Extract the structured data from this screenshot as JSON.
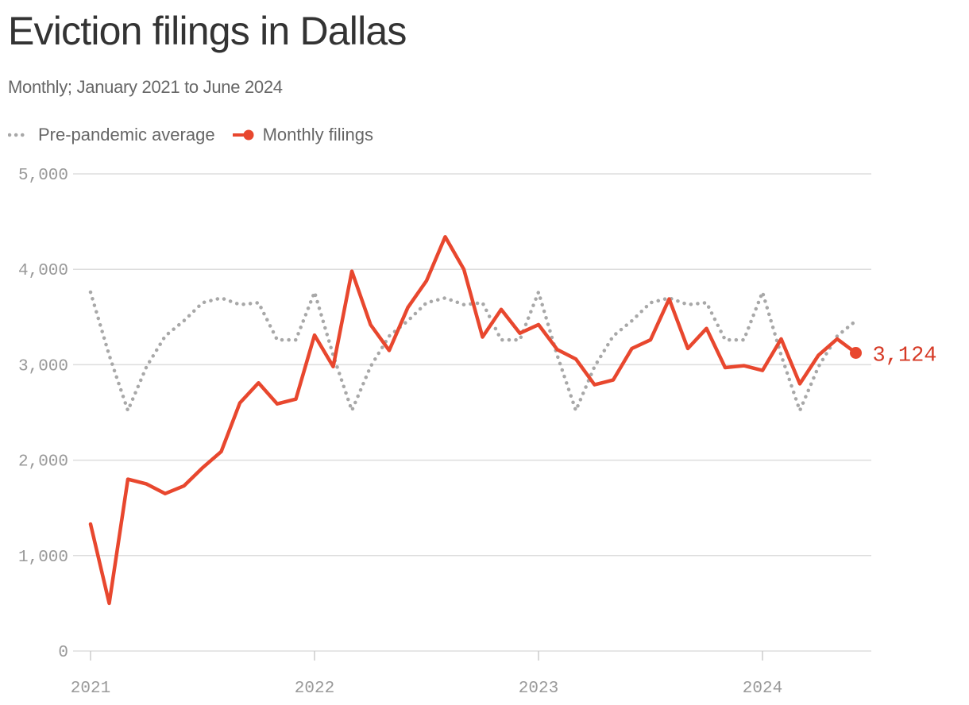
{
  "title": "Eviction filings in Dallas",
  "subtitle": "Monthly; January 2021 to June 2024",
  "colors": {
    "filings": "#e8472e",
    "baseline": "#a8a8a8",
    "grid": "#dddddd",
    "axis_text": "#999999",
    "end_label": "#d63a26"
  },
  "legend": [
    {
      "label": "Pre-pandemic average",
      "style": "dotted",
      "color": "#a8a8a8"
    },
    {
      "label": "Monthly filings",
      "style": "line-dot",
      "color": "#e8472e"
    }
  ],
  "chart_data": {
    "type": "line",
    "title": "Eviction filings in Dallas",
    "subtitle": "Monthly; January 2021 to June 2024",
    "xlabel": "",
    "ylabel": "",
    "ylim": [
      0,
      5000
    ],
    "xlim": [
      "2021-01",
      "2024-06"
    ],
    "y_ticks": [
      0,
      1000,
      2000,
      3000,
      4000,
      5000
    ],
    "y_tick_labels": [
      "0",
      "1,000",
      "2,000",
      "3,000",
      "4,000",
      "5,000"
    ],
    "x_ticks": [
      "2021-01",
      "2022-01",
      "2023-01",
      "2024-01"
    ],
    "x_tick_labels": [
      "2021",
      "2022",
      "2023",
      "2024"
    ],
    "grid": true,
    "legend_position": "top-left",
    "x": [
      "2021-01",
      "2021-02",
      "2021-03",
      "2021-04",
      "2021-05",
      "2021-06",
      "2021-07",
      "2021-08",
      "2021-09",
      "2021-10",
      "2021-11",
      "2021-12",
      "2022-01",
      "2022-02",
      "2022-03",
      "2022-04",
      "2022-05",
      "2022-06",
      "2022-07",
      "2022-08",
      "2022-09",
      "2022-10",
      "2022-11",
      "2022-12",
      "2023-01",
      "2023-02",
      "2023-03",
      "2023-04",
      "2023-05",
      "2023-06",
      "2023-07",
      "2023-08",
      "2023-09",
      "2023-10",
      "2023-11",
      "2023-12",
      "2024-01",
      "2024-02",
      "2024-03",
      "2024-04",
      "2024-05",
      "2024-06"
    ],
    "series": [
      {
        "name": "Pre-pandemic average",
        "style": "dotted",
        "values": [
          3760,
          3100,
          2520,
          2980,
          3300,
          3460,
          3650,
          3700,
          3630,
          3650,
          3260,
          3260,
          3760,
          3100,
          2520,
          2980,
          3300,
          3460,
          3650,
          3700,
          3630,
          3650,
          3260,
          3260,
          3760,
          3100,
          2520,
          2980,
          3300,
          3460,
          3650,
          3700,
          3630,
          3650,
          3260,
          3260,
          3760,
          3100,
          2520,
          2980,
          3300,
          3460
        ]
      },
      {
        "name": "Monthly filings",
        "style": "solid",
        "values": [
          1330,
          500,
          1800,
          1750,
          1650,
          1730,
          1920,
          2090,
          2600,
          2810,
          2590,
          2640,
          3310,
          2980,
          3980,
          3420,
          3150,
          3600,
          3880,
          4340,
          4000,
          3290,
          3580,
          3330,
          3420,
          3160,
          3060,
          2790,
          2840,
          3170,
          3260,
          3690,
          3170,
          3380,
          2970,
          2990,
          2940,
          3270,
          2800,
          3100,
          3270,
          3124
        ]
      }
    ],
    "end_label": {
      "series": "Monthly filings",
      "text": "3,124",
      "value": 3124
    }
  }
}
